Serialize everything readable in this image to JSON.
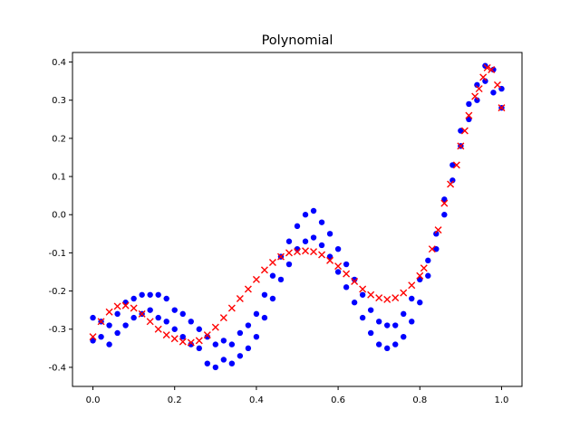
{
  "chart_data": {
    "type": "scatter",
    "title": "Polynomial",
    "xlabel": "",
    "ylabel": "",
    "xlim": [
      -0.05,
      1.05
    ],
    "ylim": [
      -0.45,
      0.425
    ],
    "grid": false,
    "xticks": [
      "0.0",
      "0.2",
      "0.4",
      "0.6",
      "0.8",
      "1.0"
    ],
    "yticks": [
      "-0.4",
      "-0.3",
      "-0.2",
      "-0.1",
      "0.0",
      "0.1",
      "0.2",
      "0.3",
      "0.4"
    ],
    "xtick_values": [
      0,
      0.2,
      0.4,
      0.6,
      0.8,
      1.0
    ],
    "ytick_values": [
      -0.4,
      -0.3,
      -0.2,
      -0.1,
      0,
      0.1,
      0.2,
      0.3,
      0.4
    ],
    "series": [
      {
        "name": "data",
        "marker": "circle",
        "color": "#0000ff",
        "x": [
          0,
          0,
          0.02,
          0.02,
          0.04,
          0.04,
          0.06,
          0.06,
          0.08,
          0.08,
          0.1,
          0.1,
          0.12,
          0.12,
          0.14,
          0.14,
          0.16,
          0.16,
          0.18,
          0.18,
          0.2,
          0.2,
          0.22,
          0.22,
          0.24,
          0.24,
          0.26,
          0.26,
          0.28,
          0.28,
          0.3,
          0.3,
          0.32,
          0.32,
          0.34,
          0.34,
          0.36,
          0.36,
          0.38,
          0.38,
          0.4,
          0.4,
          0.42,
          0.42,
          0.44,
          0.44,
          0.46,
          0.46,
          0.48,
          0.48,
          0.5,
          0.5,
          0.52,
          0.52,
          0.54,
          0.54,
          0.56,
          0.56,
          0.58,
          0.58,
          0.6,
          0.6,
          0.62,
          0.62,
          0.64,
          0.64,
          0.66,
          0.66,
          0.68,
          0.68,
          0.7,
          0.7,
          0.72,
          0.72,
          0.74,
          0.74,
          0.76,
          0.76,
          0.78,
          0.78,
          0.8,
          0.8,
          0.82,
          0.82,
          0.84,
          0.84,
          0.86,
          0.86,
          0.88,
          0.88,
          0.9,
          0.9,
          0.92,
          0.92,
          0.94,
          0.94,
          0.96,
          0.96,
          0.98,
          0.98,
          1.0,
          1.0
        ],
        "y": [
          -0.27,
          -0.33,
          -0.32,
          -0.28,
          -0.29,
          -0.34,
          -0.26,
          -0.31,
          -0.29,
          -0.23,
          -0.22,
          -0.27,
          -0.21,
          -0.26,
          -0.25,
          -0.21,
          -0.21,
          -0.27,
          -0.22,
          -0.28,
          -0.3,
          -0.25,
          -0.26,
          -0.32,
          -0.28,
          -0.34,
          -0.35,
          -0.3,
          -0.32,
          -0.39,
          -0.4,
          -0.34,
          -0.33,
          -0.38,
          -0.39,
          -0.34,
          -0.31,
          -0.37,
          -0.35,
          -0.29,
          -0.26,
          -0.32,
          -0.27,
          -0.21,
          -0.16,
          -0.22,
          -0.11,
          -0.17,
          -0.13,
          -0.07,
          -0.03,
          -0.09,
          0.0,
          -0.07,
          0.01,
          -0.06,
          -0.08,
          -0.02,
          -0.05,
          -0.11,
          -0.09,
          -0.15,
          -0.19,
          -0.13,
          -0.17,
          -0.23,
          -0.27,
          -0.21,
          -0.25,
          -0.31,
          -0.34,
          -0.28,
          -0.29,
          -0.35,
          -0.34,
          -0.29,
          -0.26,
          -0.32,
          -0.28,
          -0.22,
          -0.17,
          -0.23,
          -0.16,
          -0.12,
          -0.05,
          -0.09,
          0.04,
          0.0,
          0.13,
          0.09,
          0.22,
          0.18,
          0.29,
          0.25,
          0.34,
          0.3,
          0.39,
          0.35,
          0.38,
          0.32,
          0.28,
          0.33
        ]
      },
      {
        "name": "polynomial fit",
        "marker": "x",
        "color": "#ff0000",
        "x": [
          0,
          0.02,
          0.04,
          0.06,
          0.08,
          0.1,
          0.12,
          0.14,
          0.16,
          0.18,
          0.2,
          0.22,
          0.24,
          0.26,
          0.28,
          0.3,
          0.32,
          0.34,
          0.36,
          0.38,
          0.4,
          0.42,
          0.44,
          0.46,
          0.48,
          0.5,
          0.52,
          0.54,
          0.56,
          0.58,
          0.6,
          0.62,
          0.64,
          0.66,
          0.68,
          0.7,
          0.72,
          0.74,
          0.76,
          0.78,
          0.8,
          0.81,
          0.83,
          0.845,
          0.86,
          0.875,
          0.89,
          0.9,
          0.91,
          0.92,
          0.935,
          0.945,
          0.955,
          0.965,
          0.975,
          0.99,
          1.0
        ],
        "y": [
          -0.32,
          -0.28,
          -0.255,
          -0.24,
          -0.238,
          -0.245,
          -0.26,
          -0.28,
          -0.3,
          -0.315,
          -0.325,
          -0.333,
          -0.335,
          -0.33,
          -0.315,
          -0.295,
          -0.27,
          -0.245,
          -0.22,
          -0.195,
          -0.17,
          -0.145,
          -0.125,
          -0.11,
          -0.1,
          -0.097,
          -0.095,
          -0.097,
          -0.105,
          -0.12,
          -0.135,
          -0.155,
          -0.175,
          -0.195,
          -0.21,
          -0.218,
          -0.222,
          -0.218,
          -0.205,
          -0.185,
          -0.16,
          -0.14,
          -0.09,
          -0.04,
          0.03,
          0.08,
          0.13,
          0.18,
          0.22,
          0.26,
          0.31,
          0.33,
          0.36,
          0.385,
          0.38,
          0.34,
          0.28
        ]
      }
    ]
  }
}
